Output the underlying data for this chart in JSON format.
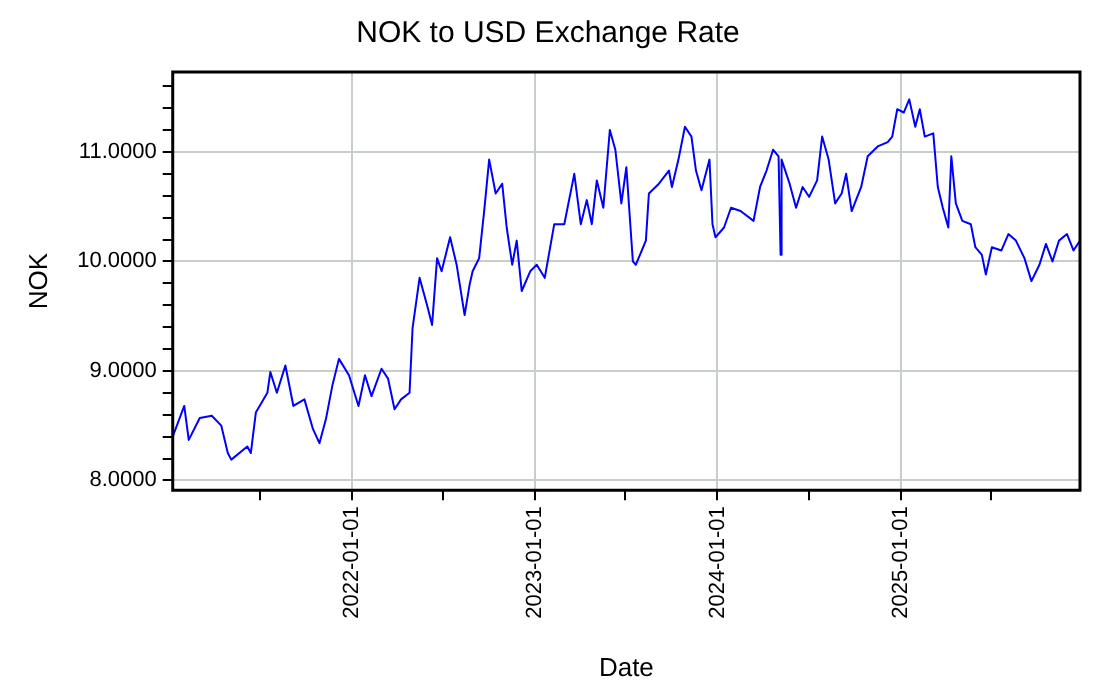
{
  "chart_data": {
    "type": "line",
    "title": "NOK to USD Exchange Rate",
    "xlabel": "Date",
    "ylabel": "NOK",
    "x": [
      "2021-01-08",
      "2021-01-31",
      "2021-02-09",
      "2021-03-03",
      "2021-03-27",
      "2021-04-15",
      "2021-04-28",
      "2021-05-05",
      "2021-06-06",
      "2021-06-13",
      "2021-06-23",
      "2021-07-16",
      "2021-07-22",
      "2021-08-04",
      "2021-08-21",
      "2021-09-06",
      "2021-09-28",
      "2021-10-15",
      "2021-10-28",
      "2021-11-10",
      "2021-11-23",
      "2021-12-06",
      "2021-12-26",
      "2022-01-14",
      "2022-01-27",
      "2022-02-09",
      "2022-03-01",
      "2022-03-14",
      "2022-03-27",
      "2022-04-09",
      "2022-04-26",
      "2022-05-02",
      "2022-05-16",
      "2022-05-31",
      "2022-06-10",
      "2022-06-20",
      "2022-06-29",
      "2022-07-16",
      "2022-07-29",
      "2022-08-14",
      "2022-08-24",
      "2022-08-30",
      "2022-09-12",
      "2022-09-22",
      "2022-10-02",
      "2022-10-15",
      "2022-10-28",
      "2022-11-06",
      "2022-11-17",
      "2022-11-26",
      "2022-12-06",
      "2022-12-23",
      "2023-01-05",
      "2023-01-21",
      "2023-02-09",
      "2023-03-01",
      "2023-03-21",
      "2023-04-03",
      "2023-04-15",
      "2023-04-25",
      "2023-05-05",
      "2023-05-18",
      "2023-05-31",
      "2023-06-11",
      "2023-06-23",
      "2023-07-03",
      "2023-07-16",
      "2023-07-22",
      "2023-08-11",
      "2023-08-17",
      "2023-09-06",
      "2023-09-26",
      "2023-10-02",
      "2023-10-15",
      "2023-10-28",
      "2023-11-10",
      "2023-11-19",
      "2023-11-30",
      "2023-12-16",
      "2023-12-22",
      "2023-12-28",
      "2024-01-14",
      "2024-01-28",
      "2024-02-16",
      "2024-03-13",
      "2024-03-26",
      "2024-04-08",
      "2024-04-21",
      "2024-05-02",
      "2024-05-06",
      "2024-05-08",
      "2024-05-24",
      "2024-06-06",
      "2024-06-19",
      "2024-07-02",
      "2024-07-18",
      "2024-07-28",
      "2024-08-10",
      "2024-08-23",
      "2024-09-05",
      "2024-09-14",
      "2024-09-25",
      "2024-10-14",
      "2024-10-27",
      "2024-11-16",
      "2024-12-06",
      "2024-12-15",
      "2024-12-25",
      "2025-01-07",
      "2025-01-18",
      "2025-01-30",
      "2025-02-08",
      "2025-02-18",
      "2025-03-07",
      "2025-03-16",
      "2025-03-26",
      "2025-04-06",
      "2025-04-12",
      "2025-04-21",
      "2025-05-04",
      "2025-05-21",
      "2025-05-30",
      "2025-06-12",
      "2025-06-20",
      "2025-07-02",
      "2025-07-21",
      "2025-08-04",
      "2025-08-19",
      "2025-09-05",
      "2025-09-19",
      "2025-10-05",
      "2025-10-18",
      "2025-10-31",
      "2025-11-13",
      "2025-11-29",
      "2025-12-12",
      "2025-12-25"
    ],
    "series": [
      {
        "color": "#0000ff",
        "values": [
          8.4,
          8.68,
          8.37,
          8.57,
          8.59,
          8.5,
          8.25,
          8.19,
          8.31,
          8.25,
          8.62,
          8.8,
          8.99,
          8.8,
          9.05,
          8.68,
          8.74,
          8.47,
          8.34,
          8.56,
          8.87,
          9.11,
          8.96,
          8.68,
          8.96,
          8.77,
          9.02,
          8.93,
          8.65,
          8.74,
          8.8,
          9.39,
          9.85,
          9.6,
          9.42,
          10.03,
          9.91,
          10.22,
          9.97,
          9.51,
          9.79,
          9.91,
          10.03,
          10.46,
          10.93,
          10.62,
          10.71,
          10.31,
          9.97,
          10.19,
          9.73,
          9.91,
          9.97,
          9.85,
          10.34,
          10.34,
          10.8,
          10.34,
          10.56,
          10.34,
          10.74,
          10.49,
          11.2,
          11.02,
          10.53,
          10.86,
          10.0,
          9.97,
          10.19,
          10.62,
          10.71,
          10.83,
          10.68,
          10.93,
          11.23,
          11.14,
          10.83,
          10.65,
          10.93,
          10.34,
          10.22,
          10.31,
          10.49,
          10.46,
          10.37,
          10.68,
          10.83,
          11.02,
          10.96,
          10.06,
          10.93,
          10.71,
          10.49,
          10.68,
          10.59,
          10.74,
          11.14,
          10.93,
          10.53,
          10.62,
          10.8,
          10.46,
          10.68,
          10.96,
          11.05,
          11.09,
          11.14,
          11.39,
          11.36,
          11.48,
          11.23,
          11.39,
          11.14,
          11.17,
          10.68,
          10.49,
          10.31,
          10.96,
          10.53,
          10.37,
          10.34,
          10.13,
          10.06,
          9.88,
          10.13,
          10.1,
          10.25,
          10.19,
          10.03,
          9.82,
          9.97,
          10.16,
          10.0,
          10.19,
          10.25,
          10.1,
          10.19
        ]
      }
    ],
    "xlim": [
      "2021-01-08",
      "2025-12-25"
    ],
    "xticks": [
      {
        "value": "2021-07-01",
        "label": null
      },
      "2022-01-01",
      {
        "value": "2022-07-01",
        "label": null
      },
      "2023-01-01",
      {
        "value": "2023-07-01",
        "label": null
      },
      "2024-01-01",
      {
        "value": "2024-07-01",
        "label": null
      },
      "2025-01-01",
      {
        "value": "2025-07-01",
        "label": null
      }
    ],
    "ylim": [
      7.91,
      11.73
    ],
    "yticks": [
      {
        "value": 8,
        "label": "8.0000"
      },
      {
        "value": 8.2,
        "label": null
      },
      {
        "value": 8.4,
        "label": null
      },
      {
        "value": 8.6,
        "label": null
      },
      {
        "value": 8.8,
        "label": null
      },
      {
        "value": 9,
        "label": "9.0000"
      },
      {
        "value": 9.2,
        "label": null
      },
      {
        "value": 9.4,
        "label": null
      },
      {
        "value": 9.6,
        "label": null
      },
      {
        "value": 9.8,
        "label": null
      },
      {
        "value": 10,
        "label": "10.0000"
      },
      {
        "value": 10.2,
        "label": null
      },
      {
        "value": 10.4,
        "label": null
      },
      {
        "value": 10.6,
        "label": null
      },
      {
        "value": 10.8,
        "label": null
      },
      {
        "value": 11,
        "label": "11.0000"
      },
      {
        "value": 11.2,
        "label": null
      },
      {
        "value": 11.4,
        "label": null
      },
      {
        "value": 11.6,
        "label": null
      }
    ],
    "grid": true,
    "legend": false,
    "marker": "none",
    "line_style": "solid"
  }
}
